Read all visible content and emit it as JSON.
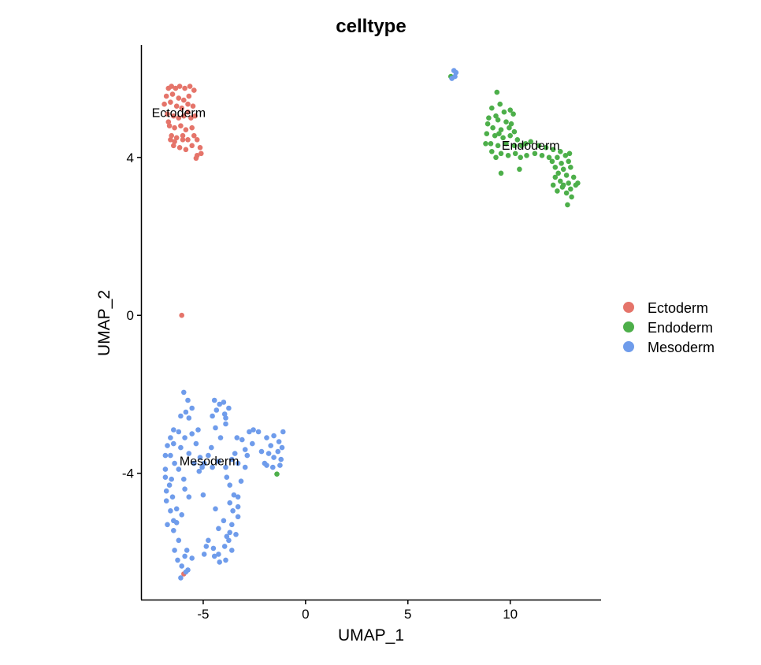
{
  "chart_data": {
    "type": "scatter",
    "title": "celltype",
    "xlabel": "UMAP_1",
    "ylabel": "UMAP_2",
    "xlim": [
      -8,
      14.4
    ],
    "ylim": [
      -7.2,
      6.85
    ],
    "x_ticks": [
      -5,
      0,
      5,
      10
    ],
    "y_ticks": [
      -4,
      0,
      4
    ],
    "x_tick_labels": [
      "-5",
      "0",
      "5",
      "10"
    ],
    "y_tick_labels": [
      "-4",
      "0",
      "4"
    ],
    "grid": false,
    "legend_position": "right",
    "series": [
      {
        "name": "Ectoderm",
        "color": "#E5746A",
        "points": [
          [
            -6.7,
            5.75
          ],
          [
            -6.55,
            5.8
          ],
          [
            -6.35,
            5.75
          ],
          [
            -6.15,
            5.8
          ],
          [
            -5.9,
            5.75
          ],
          [
            -5.65,
            5.8
          ],
          [
            -5.45,
            5.7
          ],
          [
            -6.8,
            5.55
          ],
          [
            -6.5,
            5.6
          ],
          [
            -6.2,
            5.5
          ],
          [
            -5.95,
            5.45
          ],
          [
            -5.7,
            5.55
          ],
          [
            -6.9,
            5.35
          ],
          [
            -6.6,
            5.4
          ],
          [
            -6.3,
            5.3
          ],
          [
            -6.05,
            5.25
          ],
          [
            -5.75,
            5.35
          ],
          [
            -5.5,
            5.3
          ],
          [
            -6.75,
            5.1
          ],
          [
            -6.45,
            5.05
          ],
          [
            -6.2,
            5.0
          ],
          [
            -5.95,
            5.05
          ],
          [
            -5.6,
            5.0
          ],
          [
            -6.65,
            4.8
          ],
          [
            -6.4,
            4.75
          ],
          [
            -6.1,
            4.8
          ],
          [
            -5.85,
            4.7
          ],
          [
            -5.55,
            4.75
          ],
          [
            -6.55,
            4.55
          ],
          [
            -6.3,
            4.5
          ],
          [
            -6.0,
            4.55
          ],
          [
            -5.75,
            4.45
          ],
          [
            -5.45,
            4.55
          ],
          [
            -6.45,
            4.3
          ],
          [
            -6.15,
            4.25
          ],
          [
            -5.85,
            4.2
          ],
          [
            -5.55,
            4.3
          ],
          [
            -6.6,
            4.45
          ],
          [
            -5.3,
            4.05
          ],
          [
            -5.1,
            4.1
          ],
          [
            -5.15,
            4.25
          ],
          [
            -5.35,
            3.98
          ],
          [
            -5.3,
            4.45
          ],
          [
            -6.4,
            4.4
          ],
          [
            -6.0,
            4.45
          ],
          [
            -6.7,
            4.9
          ],
          [
            -5.4,
            5.05
          ],
          [
            -5.75,
            5.15
          ],
          [
            -6.05,
            0.0
          ],
          [
            -5.95,
            -6.55
          ]
        ]
      },
      {
        "name": "Endoderm",
        "color": "#4DAF4A",
        "points": [
          [
            7.1,
            6.05
          ],
          [
            9.35,
            5.65
          ],
          [
            9.5,
            5.35
          ],
          [
            9.1,
            5.25
          ],
          [
            9.7,
            5.15
          ],
          [
            9.3,
            5.05
          ],
          [
            10.0,
            5.2
          ],
          [
            10.15,
            5.1
          ],
          [
            8.95,
            5.0
          ],
          [
            9.4,
            4.95
          ],
          [
            9.8,
            4.9
          ],
          [
            10.05,
            4.85
          ],
          [
            9.15,
            4.75
          ],
          [
            9.55,
            4.7
          ],
          [
            10.2,
            4.65
          ],
          [
            8.85,
            4.6
          ],
          [
            9.25,
            4.55
          ],
          [
            9.65,
            4.5
          ],
          [
            10.0,
            4.55
          ],
          [
            10.35,
            4.45
          ],
          [
            9.05,
            4.35
          ],
          [
            9.4,
            4.3
          ],
          [
            9.8,
            4.35
          ],
          [
            10.2,
            4.3
          ],
          [
            10.55,
            4.3
          ],
          [
            10.75,
            4.35
          ],
          [
            11.0,
            4.4
          ],
          [
            11.4,
            4.3
          ],
          [
            11.75,
            4.25
          ],
          [
            12.1,
            4.2
          ],
          [
            12.45,
            4.15
          ],
          [
            8.8,
            4.35
          ],
          [
            9.1,
            4.15
          ],
          [
            9.55,
            4.1
          ],
          [
            9.9,
            4.05
          ],
          [
            10.25,
            4.1
          ],
          [
            10.5,
            4.0
          ],
          [
            10.8,
            4.05
          ],
          [
            11.2,
            4.1
          ],
          [
            11.55,
            4.05
          ],
          [
            11.9,
            4.0
          ],
          [
            12.3,
            4.0
          ],
          [
            12.7,
            4.05
          ],
          [
            9.3,
            4.0
          ],
          [
            12.05,
            3.9
          ],
          [
            12.5,
            3.85
          ],
          [
            12.85,
            3.9
          ],
          [
            12.2,
            3.75
          ],
          [
            12.6,
            3.7
          ],
          [
            12.95,
            3.75
          ],
          [
            12.35,
            3.6
          ],
          [
            12.75,
            3.55
          ],
          [
            13.1,
            3.5
          ],
          [
            12.45,
            3.4
          ],
          [
            12.85,
            3.35
          ],
          [
            13.2,
            3.3
          ],
          [
            12.1,
            3.3
          ],
          [
            12.55,
            3.25
          ],
          [
            12.95,
            3.2
          ],
          [
            13.3,
            3.35
          ],
          [
            12.3,
            3.15
          ],
          [
            12.75,
            3.1
          ],
          [
            12.6,
            3.3
          ],
          [
            13.0,
            3.0
          ],
          [
            12.8,
            2.8
          ],
          [
            9.55,
            3.6
          ],
          [
            10.45,
            3.7
          ],
          [
            9.95,
            4.75
          ],
          [
            8.9,
            4.85
          ],
          [
            9.45,
            4.6
          ],
          [
            12.2,
            3.5
          ],
          [
            12.9,
            4.1
          ],
          [
            -1.4,
            -4.02
          ]
        ]
      },
      {
        "name": "Mesoderm",
        "color": "#6F9CEB",
        "points": [
          [
            7.25,
            6.2
          ],
          [
            7.35,
            6.15
          ],
          [
            7.15,
            6.0
          ],
          [
            7.3,
            6.05
          ],
          [
            -5.95,
            -1.95
          ],
          [
            -5.75,
            -2.15
          ],
          [
            -5.85,
            -2.45
          ],
          [
            -5.55,
            -2.35
          ],
          [
            -6.1,
            -2.55
          ],
          [
            -5.7,
            -2.6
          ],
          [
            -4.45,
            -2.15
          ],
          [
            -4.2,
            -2.25
          ],
          [
            -4.35,
            -2.4
          ],
          [
            -3.95,
            -2.5
          ],
          [
            -4.0,
            -2.2
          ],
          [
            -3.75,
            -2.35
          ],
          [
            -3.9,
            -2.6
          ],
          [
            -3.9,
            -2.75
          ],
          [
            -4.55,
            -2.55
          ],
          [
            -6.45,
            -2.9
          ],
          [
            -6.6,
            -3.1
          ],
          [
            -6.75,
            -3.3
          ],
          [
            -6.6,
            -3.55
          ],
          [
            -6.2,
            -2.95
          ],
          [
            -6.45,
            -3.25
          ],
          [
            -6.1,
            -3.35
          ],
          [
            -5.9,
            -3.1
          ],
          [
            -5.7,
            -3.5
          ],
          [
            -5.35,
            -3.25
          ],
          [
            -5.15,
            -3.6
          ],
          [
            -5.45,
            -3.75
          ],
          [
            -5.05,
            -3.85
          ],
          [
            -4.75,
            -3.55
          ],
          [
            -4.55,
            -3.85
          ],
          [
            -4.25,
            -3.7
          ],
          [
            -3.9,
            -3.85
          ],
          [
            -3.6,
            -3.65
          ],
          [
            -3.3,
            -3.75
          ],
          [
            -2.95,
            -3.85
          ],
          [
            -6.85,
            -3.55
          ],
          [
            -6.4,
            -3.75
          ],
          [
            -6.2,
            -3.9
          ],
          [
            -5.95,
            -4.15
          ],
          [
            -3.1,
            -3.15
          ],
          [
            -2.95,
            -3.4
          ],
          [
            -2.75,
            -2.95
          ],
          [
            -2.6,
            -3.25
          ],
          [
            -2.55,
            -2.9
          ],
          [
            -2.3,
            -2.95
          ],
          [
            -3.35,
            -3.1
          ],
          [
            -2.15,
            -3.45
          ],
          [
            -2.0,
            -3.75
          ],
          [
            -1.9,
            -3.1
          ],
          [
            -1.7,
            -3.3
          ],
          [
            -1.55,
            -3.05
          ],
          [
            -1.3,
            -3.2
          ],
          [
            -1.8,
            -3.5
          ],
          [
            -1.55,
            -3.6
          ],
          [
            -1.35,
            -3.45
          ],
          [
            -1.2,
            -3.65
          ],
          [
            -1.9,
            -3.8
          ],
          [
            -1.6,
            -3.85
          ],
          [
            -1.25,
            -3.8
          ],
          [
            -1.1,
            -2.95
          ],
          [
            -1.15,
            -3.35
          ],
          [
            -6.85,
            -4.1
          ],
          [
            -6.65,
            -4.3
          ],
          [
            -6.5,
            -4.6
          ],
          [
            -6.8,
            -4.7
          ],
          [
            -6.6,
            -4.95
          ],
          [
            -6.45,
            -5.2
          ],
          [
            -6.75,
            -5.3
          ],
          [
            -5.9,
            -4.4
          ],
          [
            -5.7,
            -4.6
          ],
          [
            -3.85,
            -4.1
          ],
          [
            -3.7,
            -4.3
          ],
          [
            -3.5,
            -4.55
          ],
          [
            -3.7,
            -4.75
          ],
          [
            -3.3,
            -4.6
          ],
          [
            -3.55,
            -4.95
          ],
          [
            -3.3,
            -5.1
          ],
          [
            -3.6,
            -5.3
          ],
          [
            -3.4,
            -5.55
          ],
          [
            -4.0,
            -5.2
          ],
          [
            -4.25,
            -5.4
          ],
          [
            -3.85,
            -5.6
          ],
          [
            -5.0,
            -4.55
          ],
          [
            -4.4,
            -4.9
          ],
          [
            -6.3,
            -5.25
          ],
          [
            -6.45,
            -5.45
          ],
          [
            -6.2,
            -5.7
          ],
          [
            -6.4,
            -5.95
          ],
          [
            -6.25,
            -6.2
          ],
          [
            -5.8,
            -5.95
          ],
          [
            -5.55,
            -6.15
          ],
          [
            -6.05,
            -6.35
          ],
          [
            -5.85,
            -6.5
          ],
          [
            -6.1,
            -6.65
          ],
          [
            -5.75,
            -6.45
          ],
          [
            -5.9,
            -6.1
          ],
          [
            -4.75,
            -5.7
          ],
          [
            -4.5,
            -5.9
          ],
          [
            -4.25,
            -6.05
          ],
          [
            -3.95,
            -5.85
          ],
          [
            -3.75,
            -5.7
          ],
          [
            -3.6,
            -5.95
          ],
          [
            -3.9,
            -6.2
          ],
          [
            -4.2,
            -6.25
          ],
          [
            -4.45,
            -6.1
          ],
          [
            -4.85,
            -5.85
          ],
          [
            -4.95,
            -6.05
          ],
          [
            -3.7,
            -5.5
          ],
          [
            -6.85,
            -3.9
          ],
          [
            -6.55,
            -4.15
          ],
          [
            -5.2,
            -3.95
          ],
          [
            -4.95,
            -3.75
          ],
          [
            -5.55,
            -3.0
          ],
          [
            -5.25,
            -2.9
          ],
          [
            -4.15,
            -3.1
          ],
          [
            -4.4,
            -2.85
          ],
          [
            -3.45,
            -3.5
          ],
          [
            -6.8,
            -4.45
          ],
          [
            -6.3,
            -4.9
          ],
          [
            -6.05,
            -5.05
          ],
          [
            -3.3,
            -4.85
          ],
          [
            -3.15,
            -4.2
          ],
          [
            -2.85,
            -3.55
          ],
          [
            -4.6,
            -3.35
          ]
        ]
      }
    ],
    "annotations": [
      {
        "text": "Ectoderm",
        "x": -6.2,
        "y": 5.02
      },
      {
        "text": "Endoderm",
        "x": 11.0,
        "y": 4.2
      },
      {
        "text": "Mesoderm",
        "x": -4.7,
        "y": -3.8
      }
    ]
  }
}
